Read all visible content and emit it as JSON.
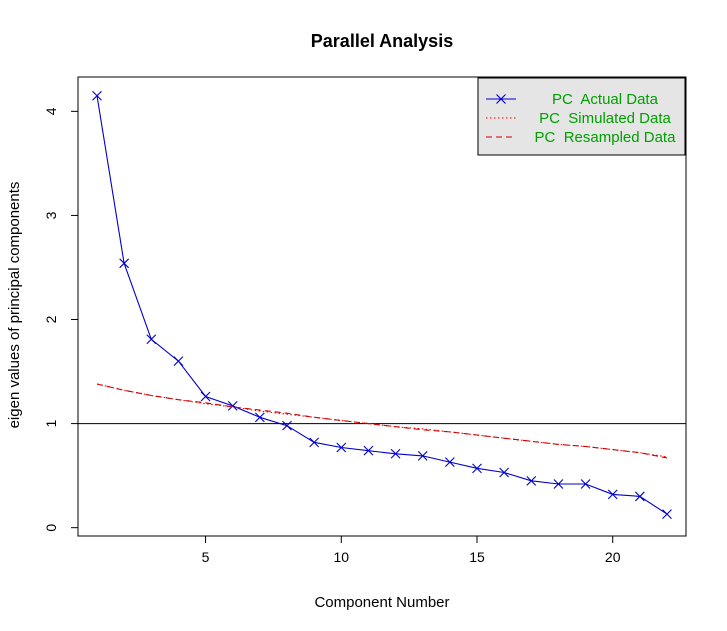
{
  "chart_data": {
    "type": "line",
    "title": "Parallel Analysis",
    "xlabel": "Component Number",
    "ylabel": "eigen values of principal components",
    "xlim": [
      0.3,
      22.7
    ],
    "ylim": [
      -0.08,
      4.33
    ],
    "x_ticks": [
      5,
      10,
      15,
      20
    ],
    "y_ticks": [
      0,
      1,
      2,
      3,
      4
    ],
    "reference_line_y": 1,
    "legend_position": "top-right",
    "x": [
      1,
      2,
      3,
      4,
      5,
      6,
      7,
      8,
      9,
      10,
      11,
      12,
      13,
      14,
      15,
      16,
      17,
      18,
      19,
      20,
      21,
      22
    ],
    "series": [
      {
        "name": "PC  Actual Data",
        "style": "line-with-x-markers",
        "color": "#0000cc",
        "values": [
          4.15,
          2.54,
          1.81,
          1.6,
          1.26,
          1.17,
          1.06,
          0.98,
          0.82,
          0.77,
          0.74,
          0.71,
          0.69,
          0.63,
          0.57,
          0.53,
          0.45,
          0.42,
          0.42,
          0.32,
          0.3,
          0.13
        ]
      },
      {
        "name": "PC  Simulated Data",
        "style": "dotted",
        "color": "#ff0000",
        "values": [
          1.38,
          1.32,
          1.27,
          1.23,
          1.19,
          1.16,
          1.12,
          1.09,
          1.06,
          1.03,
          1.0,
          0.97,
          0.95,
          0.92,
          0.89,
          0.86,
          0.83,
          0.8,
          0.78,
          0.75,
          0.72,
          0.68
        ]
      },
      {
        "name": "PC  Resampled Data",
        "style": "dashed",
        "color": "#cc0000",
        "values": [
          1.38,
          1.32,
          1.27,
          1.23,
          1.2,
          1.16,
          1.13,
          1.1,
          1.06,
          1.03,
          1.0,
          0.97,
          0.94,
          0.92,
          0.89,
          0.86,
          0.83,
          0.8,
          0.78,
          0.75,
          0.72,
          0.67
        ]
      }
    ]
  }
}
